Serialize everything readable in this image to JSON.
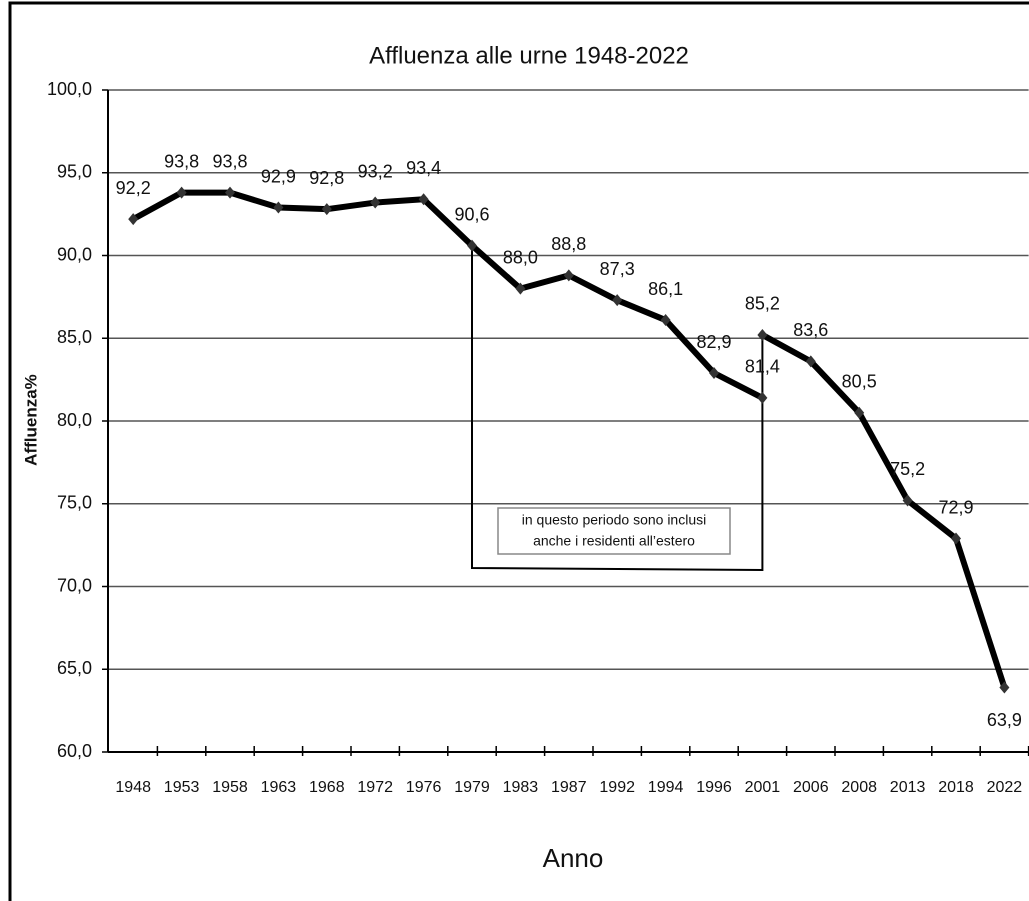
{
  "chart_data": {
    "type": "line",
    "title": "Affluenza alle urne 1948-2022",
    "x_label": "Anno",
    "y_label": "Affluenza%",
    "categories": [
      "1948",
      "1953",
      "1958",
      "1963",
      "1968",
      "1972",
      "1976",
      "1979",
      "1983",
      "1987",
      "1992",
      "1994",
      "1996",
      "2001",
      "2006",
      "2008",
      "2013",
      "2018",
      "2022"
    ],
    "series": [
      {
        "color": "#000000",
        "values": [
          92.2,
          93.8,
          93.8,
          92.9,
          92.8,
          93.2,
          93.4,
          90.6,
          88.0,
          88.8,
          87.3,
          86.1,
          82.9,
          81.4,
          null,
          null,
          null,
          null,
          null
        ],
        "value_labels": [
          "92,2",
          "93,8",
          "93,8",
          "92,9",
          "92,8",
          "93,2",
          "93,4",
          "90,6",
          "88,0",
          "88,8",
          "87,3",
          "86,1",
          "82,9",
          "81,4",
          null,
          null,
          null,
          null,
          null
        ]
      },
      {
        "color": "#000000",
        "values": [
          null,
          null,
          null,
          null,
          null,
          null,
          null,
          null,
          null,
          null,
          null,
          null,
          null,
          85.2,
          83.6,
          80.5,
          75.2,
          72.9,
          63.9
        ],
        "value_labels": [
          null,
          null,
          null,
          null,
          null,
          null,
          null,
          null,
          null,
          null,
          null,
          null,
          null,
          "85,2",
          "83,6",
          "80,5",
          "75,2",
          "72,9",
          "63,9"
        ]
      }
    ],
    "ylim": [
      60,
      100
    ],
    "yticks": [
      {
        "value": 60,
        "label": "60,0"
      },
      {
        "value": 65,
        "label": "65,0"
      },
      {
        "value": 70,
        "label": "70,0"
      },
      {
        "value": 75,
        "label": "75,0"
      },
      {
        "value": 80,
        "label": "80,0"
      },
      {
        "value": 85,
        "label": "85,0"
      },
      {
        "value": 90,
        "label": "90,0"
      },
      {
        "value": 95,
        "label": "95,0"
      },
      {
        "value": 100,
        "label": "100,0"
      }
    ],
    "grid": true,
    "annotation": [
      "in questo periodo sono inclusi",
      "anche i residenti all’estero"
    ]
  }
}
